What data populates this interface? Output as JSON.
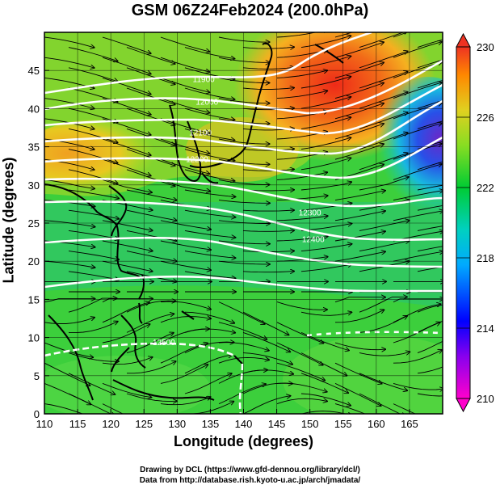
{
  "title": "GSM 06Z24Feb2024 (200.0hPa)",
  "xlabel": "Longitude (degrees)",
  "ylabel": "Latitude (degrees)",
  "credits": [
    "Drawing by DCL (https://www.gfd-dennou.org/library/dcl/)",
    "Data from http://database.rish.kyoto-u.ac.jp/arch/jmadata/"
  ],
  "chart_data": {
    "type": "heatmap",
    "x_range": [
      110,
      170
    ],
    "y_range": [
      0,
      50
    ],
    "x_ticks": [
      110,
      115,
      120,
      125,
      130,
      135,
      140,
      145,
      150,
      155,
      160,
      165
    ],
    "y_ticks": [
      0,
      5,
      10,
      15,
      20,
      25,
      30,
      35,
      40,
      45
    ],
    "colorbar": {
      "range": [
        210,
        230
      ],
      "ticks": [
        210,
        214,
        218,
        222,
        226,
        230
      ],
      "colors": [
        "#ff00cc",
        "#0000ff",
        "#00d0e0",
        "#00cc33",
        "#c8e020",
        "#ff8800",
        "#ee3322"
      ]
    },
    "contour_labels": [
      {
        "text": "11900",
        "lon": 134,
        "lat": 43.5
      },
      {
        "text": "12000",
        "lon": 134.5,
        "lat": 40.5
      },
      {
        "text": "12100",
        "lon": 133.5,
        "lat": 36.5
      },
      {
        "text": "12200",
        "lon": 133,
        "lat": 33
      },
      {
        "text": "12300",
        "lon": 150,
        "lat": 26
      },
      {
        "text": "12400",
        "lon": 150.5,
        "lat": 22.5
      },
      {
        "text": "12500",
        "lon": 128,
        "lat": 9
      }
    ]
  }
}
